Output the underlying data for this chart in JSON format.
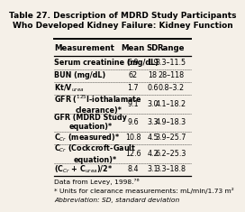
{
  "title": "Table 27. Description of MDRD Study Participants\nWho Developed Kidney Failure: Kidney Function",
  "headers": [
    "Measurement",
    "Mean",
    "SD",
    "Range"
  ],
  "rows": [
    [
      "Serum creatinine (mg/dL)",
      "6.9",
      "1.9",
      "3.3–11.5"
    ],
    [
      "BUN (mg/dL)",
      "62",
      "18",
      "28–118"
    ],
    [
      "Kt/V$_{urea}$",
      "1.7",
      "0.6",
      "0.8–3.2"
    ],
    [
      "GFR ($^{125}$I-iothalamate\nclearance)*",
      "9.1",
      "3.0",
      "4.1–18.2"
    ],
    [
      "GFR (MDRD Study\nequation)*",
      "9.6",
      "3.3",
      "4.9–18.3"
    ],
    [
      "C$_{Cr}$ (measured)*",
      "10.8",
      "4.5",
      "3.9–25.7"
    ],
    [
      "C$_{Cr}$ (Cockcroft-Gault\nequation)*",
      "12.6",
      "4.2",
      "6.2–25.3"
    ],
    [
      "(C$_{Cr}$ + C$_{urea}$)/2*",
      "8.4",
      "3.1",
      "3.3–18.8"
    ]
  ],
  "footnotes": [
    "Data from Levey, 1998.⁷⁶",
    "* Units for clearance measurements: mL/min/1.73 m²",
    "Abbreviation: SD, standard deviation"
  ],
  "bg_color": "#f5f0e8",
  "header_fontsize": 6.2,
  "title_fontsize": 6.5,
  "cell_fontsize": 5.8,
  "footnote_fontsize": 5.4
}
